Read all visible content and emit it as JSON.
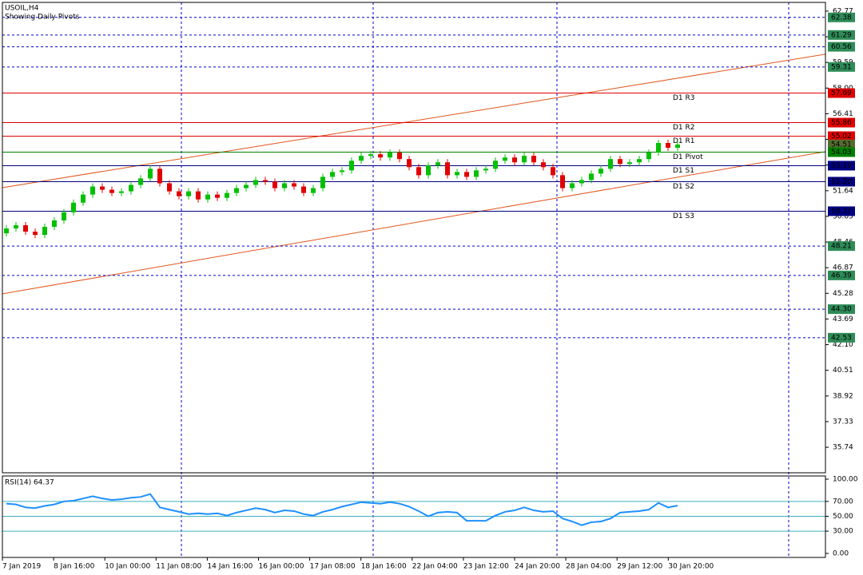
{
  "chart_data": {
    "type": "candlestick",
    "title": "USOIL,H4",
    "subtitle": "Showing Daily Pivots",
    "bull_color": "#00c000",
    "bear_color": "#e00000",
    "ylim": [
      34.16,
      63.31
    ],
    "yticks": [
      62.77,
      61.18,
      59.59,
      {
        "value": 58.0,
        "label": "58.00"
      },
      56.41,
      54.82,
      53.23,
      51.64,
      50.05,
      48.46,
      46.87,
      45.28,
      43.69,
      {
        "value": 42.1,
        "label": "42.10"
      },
      40.51,
      38.92,
      37.33,
      35.74
    ],
    "x_labels": [
      "7 Jan 2019",
      "8 Jan 16:00",
      "10 Jan 00:00",
      "11 Jan 08:00",
      "14 Jan 16:00",
      "16 Jan 00:00",
      "17 Jan 08:00",
      "18 Jan 16:00",
      "22 Jan 04:00",
      "23 Jan 12:00",
      "24 Jan 20:00",
      "28 Jan 04:00",
      "29 Jan 12:00",
      "30 Jan 20:00"
    ],
    "candles": [
      [
        49.0,
        49.5,
        48.8,
        49.3
      ],
      [
        49.3,
        49.7,
        49.1,
        49.5
      ],
      [
        49.5,
        49.7,
        48.9,
        49.1
      ],
      [
        49.1,
        49.3,
        48.7,
        48.9
      ],
      [
        48.9,
        49.6,
        48.7,
        49.4
      ],
      [
        49.4,
        50.0,
        49.2,
        49.8
      ],
      [
        49.8,
        50.5,
        49.6,
        50.3
      ],
      [
        50.3,
        51.1,
        50.1,
        50.9
      ],
      [
        50.9,
        51.6,
        50.7,
        51.4
      ],
      [
        51.4,
        52.1,
        51.2,
        51.9
      ],
      [
        51.9,
        52.1,
        51.5,
        51.7
      ],
      [
        51.7,
        51.9,
        51.3,
        51.5
      ],
      [
        51.5,
        51.8,
        51.3,
        51.6
      ],
      [
        51.6,
        52.2,
        51.4,
        52.0
      ],
      [
        52.0,
        52.6,
        51.8,
        52.4
      ],
      [
        52.4,
        53.2,
        52.2,
        53.0
      ],
      [
        53.0,
        53.2,
        51.9,
        52.1
      ],
      [
        52.1,
        52.3,
        51.4,
        51.6
      ],
      [
        51.6,
        51.8,
        51.1,
        51.3
      ],
      [
        51.3,
        51.8,
        51.1,
        51.6
      ],
      [
        51.6,
        51.8,
        50.9,
        51.1
      ],
      [
        51.1,
        51.6,
        50.9,
        51.4
      ],
      [
        51.4,
        51.6,
        51.0,
        51.2
      ],
      [
        51.2,
        51.7,
        51.0,
        51.5
      ],
      [
        51.5,
        52.0,
        51.3,
        51.8
      ],
      [
        51.8,
        52.2,
        51.6,
        52.0
      ],
      [
        52.0,
        52.5,
        51.8,
        52.3
      ],
      [
        52.3,
        52.5,
        52.0,
        52.2
      ],
      [
        52.2,
        52.4,
        51.6,
        51.8
      ],
      [
        51.8,
        52.3,
        51.6,
        52.1
      ],
      [
        52.1,
        52.3,
        51.7,
        51.9
      ],
      [
        51.9,
        52.1,
        51.3,
        51.5
      ],
      [
        51.5,
        52.0,
        51.3,
        51.8
      ],
      [
        51.8,
        52.7,
        51.6,
        52.5
      ],
      [
        52.5,
        53.0,
        52.3,
        52.8
      ],
      [
        52.8,
        53.1,
        52.6,
        52.9
      ],
      [
        52.9,
        53.7,
        52.7,
        53.5
      ],
      [
        53.5,
        54.0,
        53.3,
        53.8
      ],
      [
        53.8,
        54.1,
        53.6,
        53.9
      ],
      [
        53.9,
        54.1,
        53.5,
        53.7
      ],
      [
        53.7,
        54.2,
        53.5,
        54.0
      ],
      [
        54.0,
        54.2,
        53.4,
        53.6
      ],
      [
        53.6,
        53.8,
        52.9,
        53.1
      ],
      [
        53.1,
        53.3,
        52.4,
        52.6
      ],
      [
        52.6,
        53.4,
        52.4,
        53.2
      ],
      [
        53.2,
        53.6,
        53.0,
        53.4
      ],
      [
        53.4,
        53.6,
        52.4,
        52.6
      ],
      [
        52.6,
        53.0,
        52.4,
        52.8
      ],
      [
        52.8,
        53.0,
        52.3,
        52.5
      ],
      [
        52.5,
        53.1,
        52.3,
        52.9
      ],
      [
        52.9,
        53.2,
        52.7,
        53.0
      ],
      [
        53.0,
        53.7,
        52.8,
        53.5
      ],
      [
        53.5,
        53.9,
        53.3,
        53.7
      ],
      [
        53.7,
        53.9,
        53.2,
        53.4
      ],
      [
        53.4,
        54.0,
        53.2,
        53.8
      ],
      [
        53.8,
        54.0,
        53.2,
        53.4
      ],
      [
        53.4,
        53.6,
        52.9,
        53.1
      ],
      [
        53.1,
        53.3,
        52.4,
        52.6
      ],
      [
        52.6,
        52.8,
        51.6,
        51.8
      ],
      [
        51.8,
        52.3,
        51.6,
        52.1
      ],
      [
        52.1,
        52.5,
        51.9,
        52.3
      ],
      [
        52.3,
        52.9,
        52.1,
        52.7
      ],
      [
        52.7,
        53.2,
        52.5,
        53.0
      ],
      [
        53.0,
        53.8,
        52.8,
        53.6
      ],
      [
        53.6,
        53.8,
        53.1,
        53.3
      ],
      [
        53.3,
        53.6,
        53.1,
        53.4
      ],
      [
        53.4,
        53.8,
        53.2,
        53.6
      ],
      [
        53.6,
        54.2,
        53.4,
        54.0
      ],
      [
        54.0,
        54.8,
        53.8,
        54.6
      ],
      [
        54.6,
        54.8,
        54.1,
        54.3
      ],
      [
        54.3,
        54.7,
        54.1,
        54.5
      ]
    ],
    "trendlines": [
      {
        "color": "#e0561a",
        "values": [
          51.83,
          60.1
        ]
      },
      {
        "color": "#e0561a",
        "values": [
          45.25,
          54.06
        ]
      }
    ],
    "levels": [
      {
        "value": 62.38,
        "color": "#2e8b57",
        "line": "dashed"
      },
      {
        "value": 61.29,
        "color": "#2e8b57",
        "line": "dashed"
      },
      {
        "value": 60.56,
        "color": "#2e8b57",
        "line": "dashed"
      },
      {
        "value": 59.31,
        "color": "#2e8b57",
        "line": "dashed"
      },
      {
        "value": 57.69,
        "color": "#e00000",
        "line": "solid",
        "name": "D1 R3"
      },
      {
        "value": 55.86,
        "color": "#e00000",
        "line": "solid",
        "name": "D1 R2"
      },
      {
        "value": 55.02,
        "color": "#e00000",
        "line": "solid",
        "name": "D1 R1"
      },
      {
        "value": 54.51,
        "color": "#556b2f",
        "line": "none"
      },
      {
        "value": 54.03,
        "color": "#008000",
        "line": "solid",
        "name": "D1 Pivot"
      },
      {
        "value": 53.19,
        "color": "#000080",
        "line": "solid",
        "name": "D1 S1"
      },
      {
        "value": 52.2,
        "label": "52.20",
        "color": "#000080",
        "line": "solid",
        "name": "D1 S2"
      },
      {
        "value": 50.37,
        "color": "#000080",
        "line": "solid",
        "name": "D1 S3"
      },
      {
        "value": 48.21,
        "color": "#2e8b57",
        "line": "dashed"
      },
      {
        "value": 46.39,
        "color": "#2e8b57",
        "line": "dashed"
      },
      {
        "value": 44.3,
        "label": "44.30",
        "color": "#2e8b57",
        "line": "dashed"
      },
      {
        "value": 42.53,
        "color": "#2e8b57",
        "line": "dashed"
      }
    ],
    "rsi": {
      "type": "line",
      "title": "RSI(14) 64.37",
      "color": "#1e90ff",
      "ylim": [
        -5.4,
        104.3
      ],
      "yticks": [
        {
          "value": 100,
          "label": "100.00"
        },
        {
          "value": 70,
          "label": "70.00"
        },
        {
          "value": 50,
          "label": "50.00"
        },
        {
          "value": 30,
          "label": "30.00"
        },
        {
          "value": 0,
          "label": "0.00"
        }
      ],
      "levels": [
        70,
        50,
        30
      ],
      "values": [
        67,
        66,
        62,
        61,
        64,
        66,
        70,
        71,
        74,
        77,
        74,
        72,
        73,
        75,
        76,
        80,
        62,
        59,
        56,
        53,
        54,
        53,
        54,
        51,
        55,
        58,
        61,
        59,
        55,
        58,
        57,
        53,
        51,
        56,
        59,
        63,
        66,
        69,
        68,
        67,
        69,
        67,
        63,
        57,
        50,
        55,
        56,
        55,
        44,
        44,
        44,
        51,
        56,
        58,
        62,
        58,
        56,
        57,
        47,
        43,
        38,
        42,
        43,
        47,
        55,
        56,
        57,
        59,
        68,
        62,
        64.37
      ]
    }
  }
}
